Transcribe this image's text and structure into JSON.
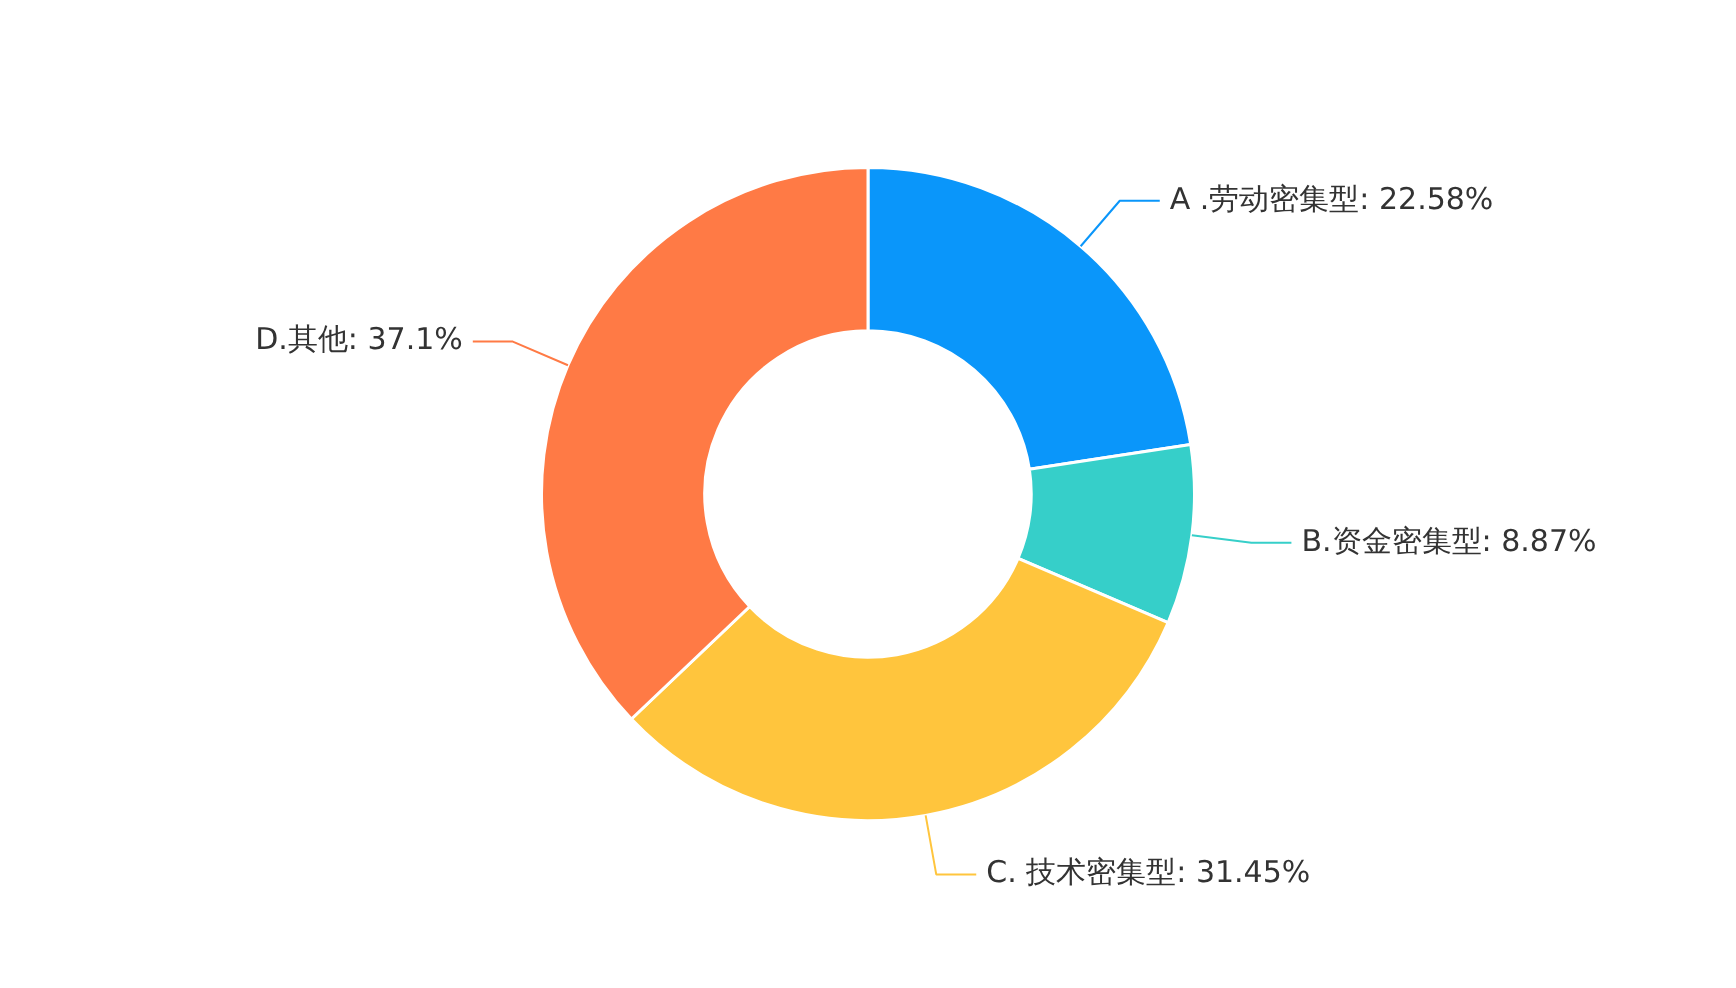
{
  "chart_data": {
    "type": "donut",
    "categories": [
      "A .劳动密集型",
      "B.资金密集型",
      "C. 技术密集型",
      "D.其他"
    ],
    "values": [
      22.58,
      8.87,
      31.45,
      37.1
    ],
    "value_labels": [
      "22.58%",
      "8.87%",
      "31.45%",
      "37.1%"
    ],
    "colors": [
      "#0a96fa",
      "#36cfc9",
      "#ffc53d",
      "#ff7a45"
    ],
    "legend": false
  }
}
